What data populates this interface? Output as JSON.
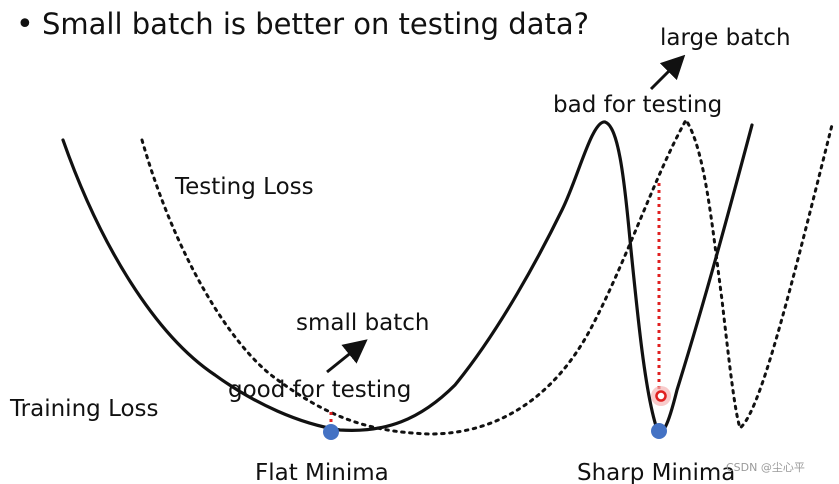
{
  "slide": {
    "title_bullet": "•",
    "title": "Small batch is better on testing data?"
  },
  "labels": {
    "testing_loss": "Testing Loss",
    "training_loss": "Training Loss",
    "small_batch": "small batch",
    "good_for_testing": "good for testing",
    "large_batch": "large batch",
    "bad_for_testing": "bad for testing",
    "flat_minima": "Flat Minima",
    "sharp_minima": "Sharp Minima"
  },
  "watermark": "CSDN @尘心平",
  "colors": {
    "curve": "#111111",
    "minima_dot": "#4472C4",
    "gap_line": "#E02020",
    "test_point_glow": "#F5B5B5"
  }
}
